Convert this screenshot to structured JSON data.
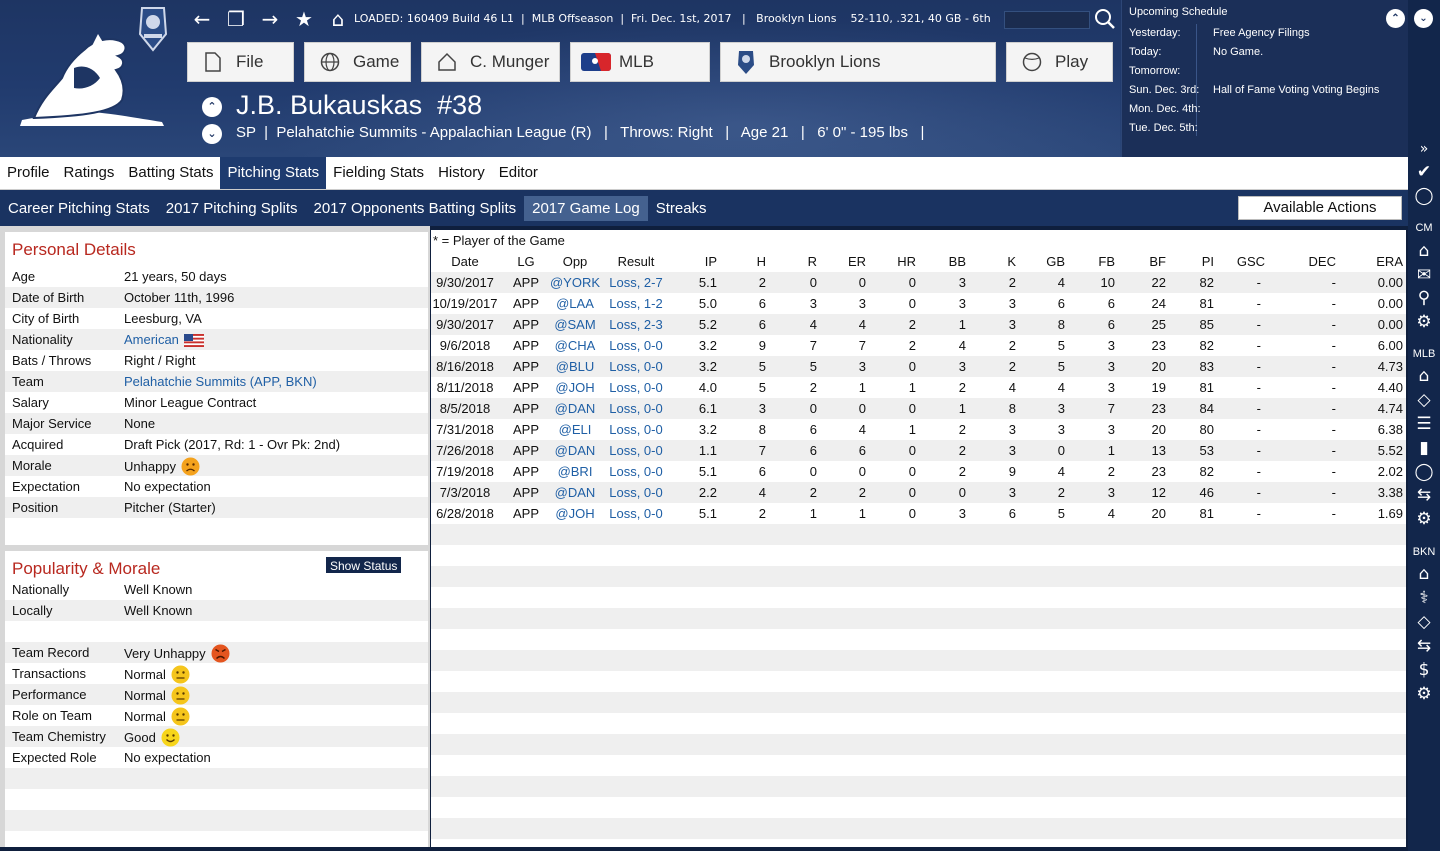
{
  "status": {
    "loaded": "LOADED: 160409 Build 46 L1",
    "phase": "MLB Offseason",
    "date": "Fri. Dec. 1st, 2017",
    "team": "Brooklyn Lions",
    "record": "52-110, .321, 40 GB - 6th"
  },
  "menu": {
    "file": "File",
    "game": "Game",
    "manager": "C. Munger",
    "league": "MLB",
    "team": "Brooklyn Lions",
    "play": "Play"
  },
  "player": {
    "name": "J.B. Bukauskas",
    "number": "#38",
    "position": "SP",
    "team_line": "Pelahatchie Summits - Appalachian League (R)",
    "throws": "Throws: Right",
    "age": "Age 21",
    "size": "6' 0\" - 195 lbs"
  },
  "schedule": {
    "title": "Upcoming Schedule",
    "rows": [
      {
        "label": "Yesterday:",
        "value": "Free Agency Filings"
      },
      {
        "label": "Today:",
        "value": "No Game."
      },
      {
        "label": "Tomorrow:",
        "value": ""
      },
      {
        "label": "Sun. Dec. 3rd:",
        "value": "Hall of Fame Voting Voting Begins"
      },
      {
        "label": "Mon. Dec. 4th:",
        "value": ""
      },
      {
        "label": "Tue. Dec. 5th:",
        "value": ""
      }
    ]
  },
  "tabs": [
    "Profile",
    "Ratings",
    "Batting Stats",
    "Pitching Stats",
    "Fielding Stats",
    "History",
    "Editor"
  ],
  "subtabs": [
    "Career Pitching Stats",
    "2017 Pitching Splits",
    "2017 Opponents Batting Splits",
    "2017 Game Log",
    "Streaks"
  ],
  "actions_label": "Available Actions",
  "personal": {
    "title": "Personal Details",
    "rows": [
      {
        "k": "Age",
        "v": "21 years, 50 days"
      },
      {
        "k": "Date of Birth",
        "v": "October 11th, 1996"
      },
      {
        "k": "City of Birth",
        "v": "Leesburg, VA"
      },
      {
        "k": "Nationality",
        "v": "American"
      },
      {
        "k": "Bats / Throws",
        "v": "Right / Right"
      },
      {
        "k": "Team",
        "v": "Pelahatchie Summits (APP, BKN)"
      },
      {
        "k": "Salary",
        "v": "Minor League Contract"
      },
      {
        "k": "Major Service",
        "v": "None"
      },
      {
        "k": "Acquired",
        "v": "Draft Pick (2017, Rd: 1 - Ovr Pk: 2nd)"
      },
      {
        "k": "Morale",
        "v": "Unhappy"
      },
      {
        "k": "Expectation",
        "v": "No expectation"
      },
      {
        "k": "Position",
        "v": "Pitcher (Starter)"
      }
    ]
  },
  "popularity": {
    "title": "Popularity & Morale",
    "show_status": "Show Status",
    "rows": [
      {
        "k": "Nationally",
        "v": "Well Known",
        "mood": ""
      },
      {
        "k": "Locally",
        "v": "Well Known",
        "mood": ""
      },
      {
        "k": "",
        "v": "",
        "mood": ""
      },
      {
        "k": "Team Record",
        "v": "Very Unhappy",
        "mood": "very-unhappy"
      },
      {
        "k": "Transactions",
        "v": "Normal",
        "mood": "normal"
      },
      {
        "k": "Performance",
        "v": "Normal",
        "mood": "normal"
      },
      {
        "k": "Role on Team",
        "v": "Normal",
        "mood": "normal"
      },
      {
        "k": "Team Chemistry",
        "v": "Good",
        "mood": "good"
      },
      {
        "k": "Expected Role",
        "v": "No expectation",
        "mood": ""
      }
    ]
  },
  "gamelog": {
    "legend": "* = Player of the Game",
    "columns": [
      "Date",
      "LG",
      "Opp",
      "Result",
      "IP",
      "H",
      "R",
      "ER",
      "HR",
      "BB",
      "K",
      "GB",
      "FB",
      "BF",
      "PI",
      "GSC",
      "DEC",
      "ERA"
    ],
    "rows": [
      [
        "9/30/2017",
        "APP",
        "@YORK",
        "Loss, 2-7",
        "5.1",
        "2",
        "0",
        "0",
        "0",
        "3",
        "2",
        "4",
        "10",
        "22",
        "82",
        "-",
        "-",
        "0.00"
      ],
      [
        "10/19/2017",
        "APP",
        "@LAA",
        "Loss, 1-2",
        "5.0",
        "6",
        "3",
        "3",
        "0",
        "3",
        "3",
        "6",
        "6",
        "24",
        "81",
        "-",
        "-",
        "0.00"
      ],
      [
        "9/30/2017",
        "APP",
        "@SAM",
        "Loss, 2-3",
        "5.2",
        "6",
        "4",
        "4",
        "2",
        "1",
        "3",
        "8",
        "6",
        "25",
        "85",
        "-",
        "-",
        "0.00"
      ],
      [
        "9/6/2018",
        "APP",
        "@CHA",
        "Loss, 0-0",
        "3.2",
        "9",
        "7",
        "7",
        "2",
        "4",
        "2",
        "5",
        "3",
        "23",
        "82",
        "-",
        "-",
        "6.00"
      ],
      [
        "8/16/2018",
        "APP",
        "@BLU",
        "Loss, 0-0",
        "3.2",
        "5",
        "5",
        "3",
        "0",
        "3",
        "2",
        "5",
        "3",
        "20",
        "83",
        "-",
        "-",
        "4.73"
      ],
      [
        "8/11/2018",
        "APP",
        "@JOH",
        "Loss, 0-0",
        "4.0",
        "5",
        "2",
        "1",
        "1",
        "2",
        "4",
        "4",
        "3",
        "19",
        "81",
        "-",
        "-",
        "4.40"
      ],
      [
        "8/5/2018",
        "APP",
        "@DAN",
        "Loss, 0-0",
        "6.1",
        "3",
        "0",
        "0",
        "0",
        "1",
        "8",
        "3",
        "7",
        "23",
        "84",
        "-",
        "-",
        "4.74"
      ],
      [
        "7/31/2018",
        "APP",
        "@ELI",
        "Loss, 0-0",
        "3.2",
        "8",
        "6",
        "4",
        "1",
        "2",
        "3",
        "3",
        "3",
        "20",
        "80",
        "-",
        "-",
        "6.38"
      ],
      [
        "7/26/2018",
        "APP",
        "@DAN",
        "Loss, 0-0",
        "1.1",
        "7",
        "6",
        "6",
        "0",
        "2",
        "3",
        "0",
        "1",
        "13",
        "53",
        "-",
        "-",
        "5.52"
      ],
      [
        "7/19/2018",
        "APP",
        "@BRI",
        "Loss, 0-0",
        "5.1",
        "6",
        "0",
        "0",
        "0",
        "2",
        "9",
        "4",
        "2",
        "23",
        "82",
        "-",
        "-",
        "2.02"
      ],
      [
        "7/3/2018",
        "APP",
        "@DAN",
        "Loss, 0-0",
        "2.2",
        "4",
        "2",
        "2",
        "0",
        "0",
        "3",
        "2",
        "3",
        "12",
        "46",
        "-",
        "-",
        "3.38"
      ],
      [
        "6/28/2018",
        "APP",
        "@JOH",
        "Loss, 0-0",
        "5.1",
        "2",
        "1",
        "1",
        "0",
        "3",
        "6",
        "5",
        "4",
        "20",
        "81",
        "-",
        "-",
        "1.69"
      ]
    ]
  },
  "sidebar": {
    "cm": "CM",
    "mlb": "MLB",
    "bkn": "BKN"
  },
  "colors": {
    "header": "#1e3563",
    "accent": "#1e3b6f",
    "section_title": "#b8281f",
    "link": "#1f5fa5"
  }
}
